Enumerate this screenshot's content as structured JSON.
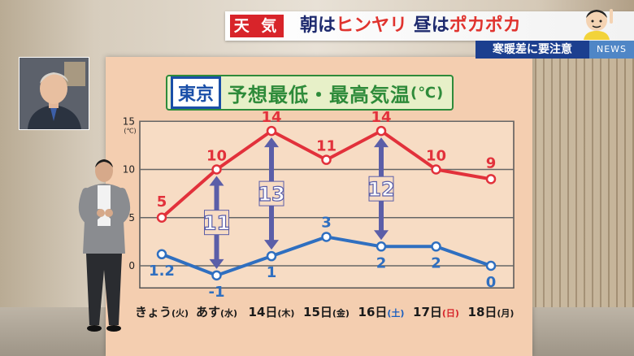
{
  "banner": {
    "tag": "天 気",
    "headline_a": "朝は",
    "headline_b": "ヒンヤリ",
    "headline_c": "昼は",
    "headline_d": "ポカポカ",
    "sub": "寒暖差に要注意",
    "news": "NEWS"
  },
  "title": {
    "city": "東京",
    "main": "予想最低・最高気温",
    "unit": "(℃)"
  },
  "colors": {
    "max_series": "#e2313b",
    "min_series": "#2f6fc0",
    "arrow": "#5b5ea8"
  },
  "chart_data": {
    "type": "line",
    "categories": [
      "きょう(火)",
      "あす(水)",
      "14日(木)",
      "15日(金)",
      "16日(土)",
      "17日(日)",
      "18日(月)"
    ],
    "category_days": [
      "きょう",
      "あす",
      "14日",
      "15日",
      "16日",
      "17日",
      "18日"
    ],
    "category_weekdays": [
      "(火)",
      "(水)",
      "(木)",
      "(金)",
      "(土)",
      "(日)",
      "(月)"
    ],
    "weekday_colors": [
      "#1a1a1a",
      "#1a1a1a",
      "#1a1a1a",
      "#1a1a1a",
      "#1a5fc0",
      "#d7262c",
      "#1a1a1a"
    ],
    "series": [
      {
        "values": [
          5,
          10,
          14,
          11,
          14,
          10,
          9
        ],
        "labels": [
          "5",
          "10",
          "14",
          "11",
          "14",
          "10",
          "9"
        ]
      },
      {
        "values": [
          1.2,
          -1,
          1,
          3,
          2,
          2,
          0
        ],
        "labels": [
          "1.2",
          "-1",
          "1",
          "3",
          "2",
          "2",
          "0"
        ]
      }
    ],
    "ranges": [
      {
        "index": 1,
        "value": 11,
        "label": "11"
      },
      {
        "index": 2,
        "value": 13,
        "label": "13"
      },
      {
        "index": 4,
        "value": 12,
        "label": "12"
      }
    ],
    "y_ticks": [
      "0",
      "5",
      "10",
      "15"
    ],
    "y_unit": "(℃)",
    "ylim": [
      -2,
      15
    ],
    "grid": true
  }
}
